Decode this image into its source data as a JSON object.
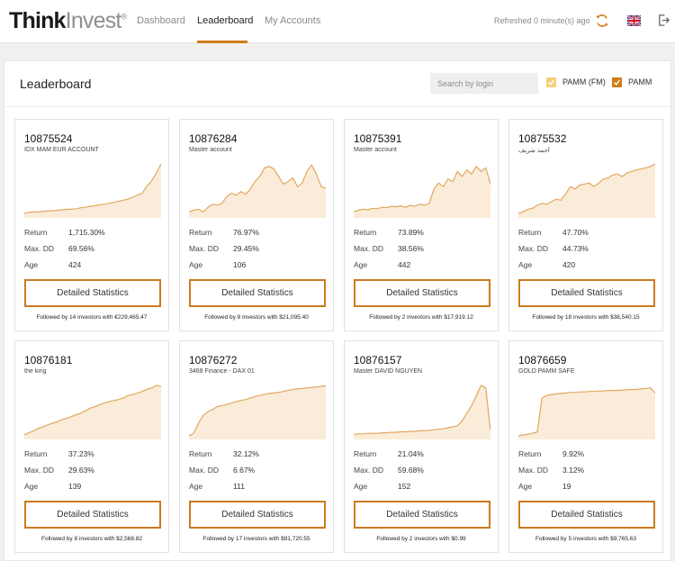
{
  "brand": {
    "bold": "Think",
    "light": "Invest",
    "mark": "®"
  },
  "nav": {
    "items": [
      "Dashboard",
      "Leaderboard",
      "My Accounts"
    ],
    "active": "Leaderboard"
  },
  "header": {
    "refreshed": "Refreshed 0 minute(s) ago",
    "refresh_icon": "refresh-icon",
    "flag_icon": "uk-flag-icon",
    "logout_icon": "logout-icon"
  },
  "colors": {
    "accent": "#d07b1a",
    "chart_stroke": "#e0a860",
    "chart_fill": "#f6dcb8",
    "pamm_fm": "#f6cf7a",
    "pamm": "#d07b1a"
  },
  "panel": {
    "title": "Leaderboard",
    "search_placeholder": "Search by login",
    "filters": [
      {
        "label": "PAMM (FM)",
        "checked": true
      },
      {
        "label": "PAMM",
        "checked": true
      }
    ]
  },
  "stats_labels": {
    "return": "Return",
    "max_dd": "Max. DD",
    "age": "Age"
  },
  "button_label": "Detailed Statistics",
  "cards": [
    {
      "id": "10875524",
      "name": "IDX MAM EUR ACCOUNT",
      "return": "1,715.30%",
      "max_dd": "69.56%",
      "age": "424",
      "followed": "Followed by 14 investors with €229,465.47",
      "trend": [
        0.02,
        0.04,
        0.05,
        0.05,
        0.06,
        0.07,
        0.07,
        0.08,
        0.09,
        0.1,
        0.1,
        0.11,
        0.13,
        0.14,
        0.16,
        0.17,
        0.19,
        0.2,
        0.22,
        0.24,
        0.26,
        0.28,
        0.3,
        0.34,
        0.38,
        0.42,
        0.56,
        0.66,
        0.82,
        1.0
      ]
    },
    {
      "id": "10876284",
      "name": "Master account",
      "return": "76.97%",
      "max_dd": "29.45%",
      "age": "106",
      "followed": "Followed by 8 investors with $21,095.40",
      "trend": [
        0.05,
        0.08,
        0.1,
        0.05,
        0.14,
        0.2,
        0.18,
        0.22,
        0.35,
        0.42,
        0.38,
        0.45,
        0.4,
        0.5,
        0.65,
        0.75,
        0.92,
        0.95,
        0.9,
        0.75,
        0.6,
        0.65,
        0.72,
        0.55,
        0.62,
        0.85,
        0.98,
        0.8,
        0.55,
        0.52
      ]
    },
    {
      "id": "10875391",
      "name": "Master account",
      "return": "73.89%",
      "max_dd": "38.56%",
      "age": "442",
      "followed": "Followed by 2 investors with $17,919.12",
      "trend": [
        0.05,
        0.08,
        0.1,
        0.09,
        0.12,
        0.11,
        0.14,
        0.13,
        0.16,
        0.15,
        0.17,
        0.14,
        0.18,
        0.16,
        0.2,
        0.18,
        0.22,
        0.5,
        0.62,
        0.55,
        0.7,
        0.65,
        0.85,
        0.75,
        0.88,
        0.8,
        0.95,
        0.85,
        0.92,
        0.6
      ]
    },
    {
      "id": "10875532",
      "name": "أحمد شريف",
      "return": "47.70%",
      "max_dd": "44.73%",
      "age": "420",
      "followed": "Followed by 18 investors with $38,540.15",
      "trend": [
        0.02,
        0.05,
        0.1,
        0.12,
        0.18,
        0.22,
        0.2,
        0.25,
        0.3,
        0.28,
        0.4,
        0.55,
        0.5,
        0.58,
        0.6,
        0.62,
        0.55,
        0.62,
        0.7,
        0.72,
        0.78,
        0.8,
        0.75,
        0.82,
        0.85,
        0.88,
        0.9,
        0.92,
        0.95,
        1.0
      ]
    },
    {
      "id": "10876181",
      "name": "the king",
      "return": "37.23%",
      "max_dd": "29.63%",
      "age": "139",
      "followed": "Followed by 8 investors with $2,568.82",
      "trend": [
        0.02,
        0.06,
        0.1,
        0.15,
        0.18,
        0.22,
        0.25,
        0.28,
        0.32,
        0.35,
        0.38,
        0.42,
        0.45,
        0.5,
        0.55,
        0.58,
        0.62,
        0.65,
        0.68,
        0.7,
        0.72,
        0.75,
        0.8,
        0.82,
        0.85,
        0.88,
        0.92,
        0.95,
        1.0,
        0.98
      ]
    },
    {
      "id": "10876272",
      "name": "3468 Finance - DAX 01",
      "return": "32.12%",
      "max_dd": "6.67%",
      "age": "111",
      "followed": "Followed by 17 investors with $91,720.55",
      "trend": [
        0.0,
        0.05,
        0.25,
        0.4,
        0.48,
        0.52,
        0.58,
        0.6,
        0.62,
        0.65,
        0.68,
        0.7,
        0.72,
        0.75,
        0.78,
        0.8,
        0.82,
        0.84,
        0.85,
        0.86,
        0.88,
        0.9,
        0.92,
        0.93,
        0.94,
        0.95,
        0.96,
        0.97,
        0.98,
        0.99
      ]
    },
    {
      "id": "10876157",
      "name": "Master DAVID NGUYEN",
      "return": "21.04%",
      "max_dd": "59.68%",
      "age": "152",
      "followed": "Followed by 2 investors with $0.99",
      "trend": [
        0.03,
        0.04,
        0.04,
        0.05,
        0.05,
        0.05,
        0.06,
        0.06,
        0.07,
        0.07,
        0.08,
        0.08,
        0.09,
        0.09,
        0.1,
        0.1,
        0.11,
        0.12,
        0.13,
        0.14,
        0.16,
        0.18,
        0.2,
        0.3,
        0.45,
        0.6,
        0.8,
        1.0,
        0.95,
        0.1
      ]
    },
    {
      "id": "10876659",
      "name": "GOLD PAMM SAFE",
      "return": "9.92%",
      "max_dd": "3.12%",
      "age": "19",
      "followed": "Followed by 5 investors with $9,765.63",
      "trend": [
        0.0,
        0.02,
        0.03,
        0.05,
        0.08,
        0.75,
        0.8,
        0.82,
        0.83,
        0.84,
        0.85,
        0.86,
        0.86,
        0.87,
        0.87,
        0.88,
        0.88,
        0.89,
        0.89,
        0.9,
        0.9,
        0.9,
        0.91,
        0.91,
        0.92,
        0.92,
        0.93,
        0.94,
        0.95,
        0.85
      ]
    }
  ]
}
